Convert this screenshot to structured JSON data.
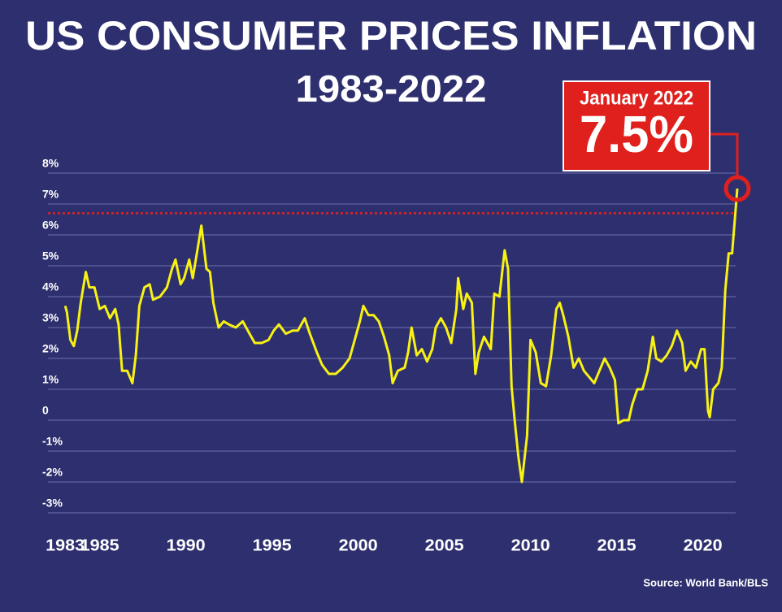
{
  "chart_data": {
    "type": "line",
    "title": "US CONSUMER PRICES INFLATION",
    "subtitle": "1983-2022",
    "source": "Source: World Bank/BLS",
    "annotation": {
      "text": "January 2022",
      "value": 7.5,
      "value_label": "7.5%"
    },
    "reference_line": 6.7,
    "color": "#f7f213",
    "reference_color": "#e0201c",
    "xlim": [
      1982,
      2022
    ],
    "ylim": [
      -3,
      8
    ],
    "xticks": [
      1983,
      1985,
      1990,
      1995,
      2000,
      2005,
      2010,
      2015,
      2020
    ],
    "yticks": [
      {
        "value": 8,
        "label": "8%"
      },
      {
        "value": 7,
        "label": "7%"
      },
      {
        "value": 6,
        "label": "6%"
      },
      {
        "value": 5,
        "label": "5%"
      },
      {
        "value": 4,
        "label": "4%"
      },
      {
        "value": 3,
        "label": "3%"
      },
      {
        "value": 2,
        "label": "2%"
      },
      {
        "value": 1,
        "label": "1%"
      },
      0,
      {
        "value": -1,
        "label": "-1%"
      },
      {
        "value": -2,
        "label": "-2%"
      },
      {
        "value": -3,
        "label": "-3%"
      }
    ],
    "grid": true,
    "x": [
      1983.0,
      1983.1,
      1983.3,
      1983.5,
      1983.7,
      1983.9,
      1984.2,
      1984.4,
      1984.7,
      1985.0,
      1985.3,
      1985.6,
      1985.9,
      1986.1,
      1986.3,
      1986.6,
      1986.9,
      1987.1,
      1987.3,
      1987.6,
      1987.9,
      1988.1,
      1988.5,
      1988.9,
      1989.2,
      1989.4,
      1989.7,
      1989.9,
      1990.2,
      1990.4,
      1990.7,
      1990.9,
      1991.2,
      1991.4,
      1991.6,
      1991.9,
      1992.2,
      1992.5,
      1992.9,
      1993.3,
      1993.7,
      1994.0,
      1994.4,
      1994.8,
      1995.1,
      1995.4,
      1995.8,
      1996.2,
      1996.5,
      1996.9,
      1997.2,
      1997.6,
      1997.9,
      1998.3,
      1998.7,
      1999.1,
      1999.5,
      1999.8,
      2000.1,
      2000.3,
      2000.6,
      2000.9,
      2001.2,
      2001.5,
      2001.8,
      2002.0,
      2002.3,
      2002.7,
      2002.9,
      2003.1,
      2003.4,
      2003.7,
      2004.0,
      2004.3,
      2004.5,
      2004.8,
      2005.1,
      2005.4,
      2005.7,
      2005.8,
      2006.1,
      2006.3,
      2006.6,
      2006.8,
      2007.0,
      2007.3,
      2007.5,
      2007.7,
      2007.9,
      2008.2,
      2008.5,
      2008.7,
      2008.9,
      2009.1,
      2009.3,
      2009.5,
      2009.8,
      2010.0,
      2010.3,
      2010.6,
      2010.9,
      2011.2,
      2011.5,
      2011.7,
      2011.9,
      2012.2,
      2012.5,
      2012.8,
      2013.1,
      2013.4,
      2013.7,
      2014.0,
      2014.3,
      2014.6,
      2014.9,
      2015.1,
      2015.4,
      2015.7,
      2015.9,
      2016.2,
      2016.5,
      2016.8,
      2017.1,
      2017.3,
      2017.6,
      2017.9,
      2018.2,
      2018.5,
      2018.8,
      2019.0,
      2019.3,
      2019.6,
      2019.9,
      2020.1,
      2020.3,
      2020.4,
      2020.6,
      2020.9,
      2021.1,
      2021.3,
      2021.5,
      2021.7,
      2021.9,
      2022.0
    ],
    "values": [
      3.7,
      3.5,
      2.6,
      2.4,
      2.9,
      3.8,
      4.8,
      4.3,
      4.3,
      3.6,
      3.7,
      3.3,
      3.6,
      3.1,
      1.6,
      1.6,
      1.2,
      2.1,
      3.7,
      4.3,
      4.4,
      3.9,
      4.0,
      4.3,
      4.9,
      5.2,
      4.4,
      4.6,
      5.2,
      4.6,
      5.6,
      6.3,
      4.9,
      4.8,
      3.8,
      3.0,
      3.2,
      3.1,
      3.0,
      3.2,
      2.8,
      2.5,
      2.5,
      2.6,
      2.9,
      3.1,
      2.8,
      2.9,
      2.9,
      3.3,
      2.8,
      2.2,
      1.8,
      1.5,
      1.5,
      1.7,
      2.0,
      2.6,
      3.2,
      3.7,
      3.4,
      3.4,
      3.2,
      2.7,
      2.1,
      1.2,
      1.6,
      1.7,
      2.2,
      3.0,
      2.1,
      2.3,
      1.9,
      2.3,
      3.0,
      3.3,
      3.0,
      2.5,
      3.6,
      4.6,
      3.6,
      4.1,
      3.8,
      1.5,
      2.2,
      2.7,
      2.5,
      2.3,
      4.1,
      4.0,
      5.5,
      4.9,
      1.1,
      -0.1,
      -1.2,
      -2.0,
      -0.5,
      2.6,
      2.2,
      1.2,
      1.1,
      2.1,
      3.6,
      3.8,
      3.4,
      2.7,
      1.7,
      2.0,
      1.6,
      1.4,
      1.2,
      1.6,
      2.0,
      1.7,
      1.3,
      -0.1,
      0.0,
      0.0,
      0.5,
      1.0,
      1.0,
      1.6,
      2.7,
      2.0,
      1.9,
      2.1,
      2.4,
      2.9,
      2.5,
      1.6,
      1.9,
      1.7,
      2.3,
      2.3,
      0.3,
      0.1,
      1.0,
      1.2,
      1.7,
      4.2,
      5.4,
      5.4,
      6.8,
      7.5
    ]
  }
}
